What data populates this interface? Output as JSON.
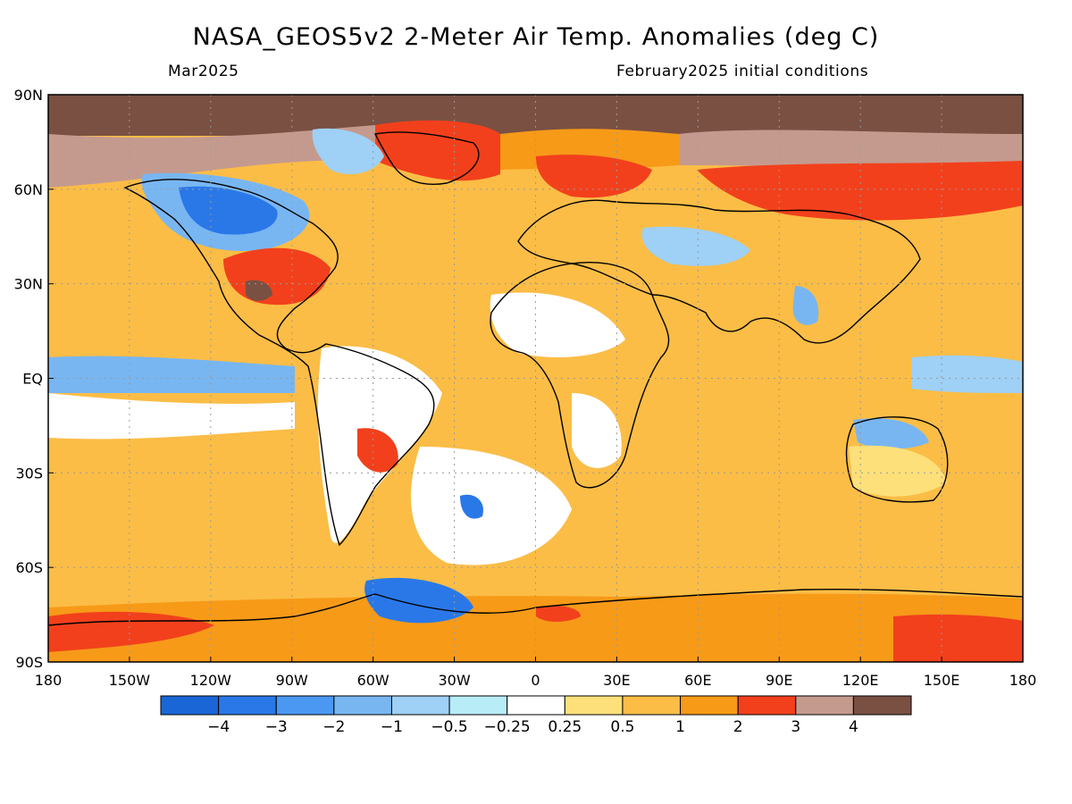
{
  "title": "NASA_GEOS5v2 2-Meter Air Temp. Anomalies (deg C)",
  "subtitle_left": "Mar2025",
  "subtitle_right": "February2025 initial conditions",
  "lat_labels": [
    "90N",
    "60N",
    "30N",
    "EQ",
    "30S",
    "60S",
    "90S"
  ],
  "lon_labels": [
    "180",
    "150W",
    "120W",
    "90W",
    "60W",
    "30W",
    "0",
    "30E",
    "60E",
    "90E",
    "120E",
    "150E",
    "180"
  ],
  "colorbar": {
    "labels": [
      "-4",
      "-3",
      "-2",
      "-1",
      "-0.5",
      "-0.25",
      "0.25",
      "0.5",
      "1",
      "2",
      "3",
      "4"
    ],
    "colors": [
      "#1a66d6",
      "#2a78e8",
      "#4a98f2",
      "#78b6f2",
      "#9fd0f5",
      "#b8ecf7",
      "#ffffff",
      "#fde07a",
      "#fbbd46",
      "#f79a18",
      "#f2401c",
      "#c59a8e",
      "#7a5043"
    ]
  }
}
